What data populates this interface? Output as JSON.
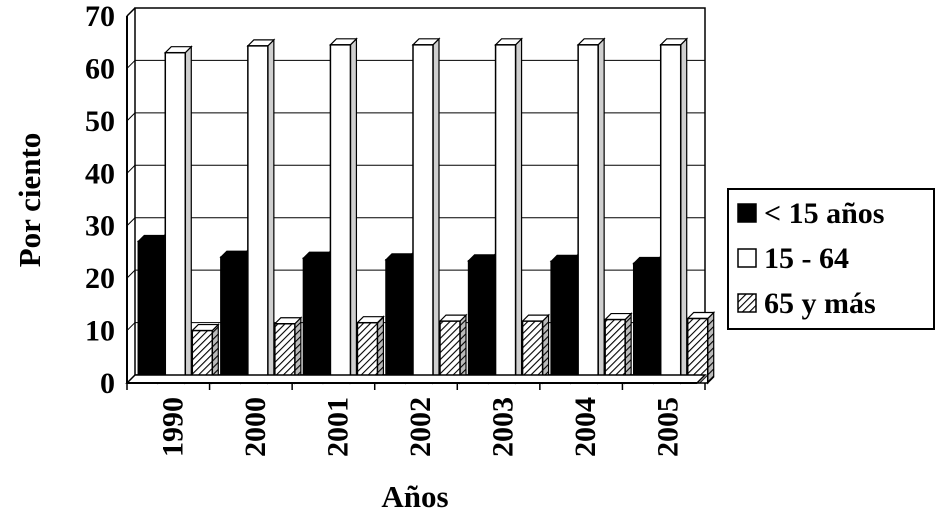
{
  "chart_data": {
    "type": "bar",
    "title": "",
    "xlabel": "Años",
    "ylabel": "Por ciento",
    "categories": [
      "1990",
      "2000",
      "2001",
      "2002",
      "2003",
      "2004",
      "2005"
    ],
    "ylim": [
      0,
      70
    ],
    "yticks": [
      "0",
      "10",
      "20",
      "30",
      "40",
      "50",
      "60",
      "70"
    ],
    "grid": "horizontal",
    "legend_position": "right",
    "series": [
      {
        "name": "< 15 años",
        "values": [
          27,
          24,
          23.8,
          23.5,
          23.3,
          23.2,
          22.8
        ],
        "fill": "#000000",
        "pattern": "solid"
      },
      {
        "name": "15 - 64",
        "values": [
          63,
          64.3,
          64.5,
          64.5,
          64.5,
          64.5,
          64.5
        ],
        "fill": "#ffffff",
        "pattern": "none"
      },
      {
        "name": "65 y más",
        "values": [
          10,
          11.3,
          11.5,
          11.8,
          11.8,
          12.1,
          12.3
        ],
        "fill": "#c8c8c8",
        "pattern": "diagonal-hatch"
      }
    ]
  }
}
